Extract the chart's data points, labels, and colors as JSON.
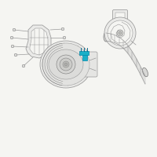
{
  "background_color": "#f5f5f2",
  "outline_color": "#999999",
  "dark_line": "#777777",
  "highlight_color": "#1ab0c8",
  "figsize": [
    2.0,
    2.0
  ],
  "dpi": 100
}
